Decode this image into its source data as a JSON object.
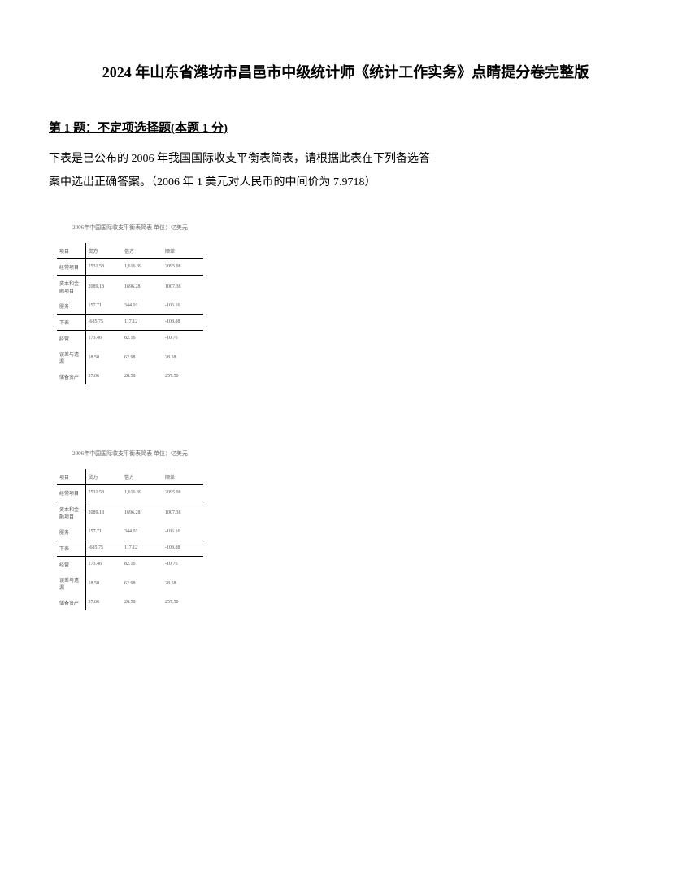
{
  "title": "2024 年山东省潍坊市昌邑市中级统计师《统计工作实务》点睛提分卷完整版",
  "question": {
    "header": "第 1 题：不定项选择题(本题 1 分)",
    "body_line1": "下表是已公布的 2006 年我国国际收支平衡表简表，请根据此表在下列备选答",
    "body_line2": "案中选出正确答案。（2006 年 1 美元对人民币的中间价为 7.9718）"
  },
  "table": {
    "caption": "2006年中国国际收支平衡表简表 单位：亿美元",
    "columns": [
      "项目",
      "贷方",
      "借方",
      "顺差"
    ],
    "rows": [
      {
        "label": "经常项目",
        "c1": "2531.58",
        "c2": "1,616.39",
        "c3": "2095.08"
      },
      {
        "label": "资本和金融项目",
        "c1": "2089.18",
        "c2": "1696.28",
        "c3": "1007.38"
      },
      {
        "label": "服务",
        "c1": "157.71",
        "c2": "344.01",
        "c3": "-106.16"
      },
      {
        "label": "下表",
        "c1": "-685.75",
        "c2": "117.12",
        "c3": "-108.88"
      },
      {
        "label": "经营",
        "c1": "173.46",
        "c2": "82.16",
        "c3": "-10.76"
      },
      {
        "label": "误差与遗漏",
        "c1": "18.58",
        "c2": "62.98",
        "c3": "28.58"
      },
      {
        "label": "储备资产",
        "c1": "37.06",
        "c2": "28.58",
        "c3": "257.50"
      }
    ]
  }
}
